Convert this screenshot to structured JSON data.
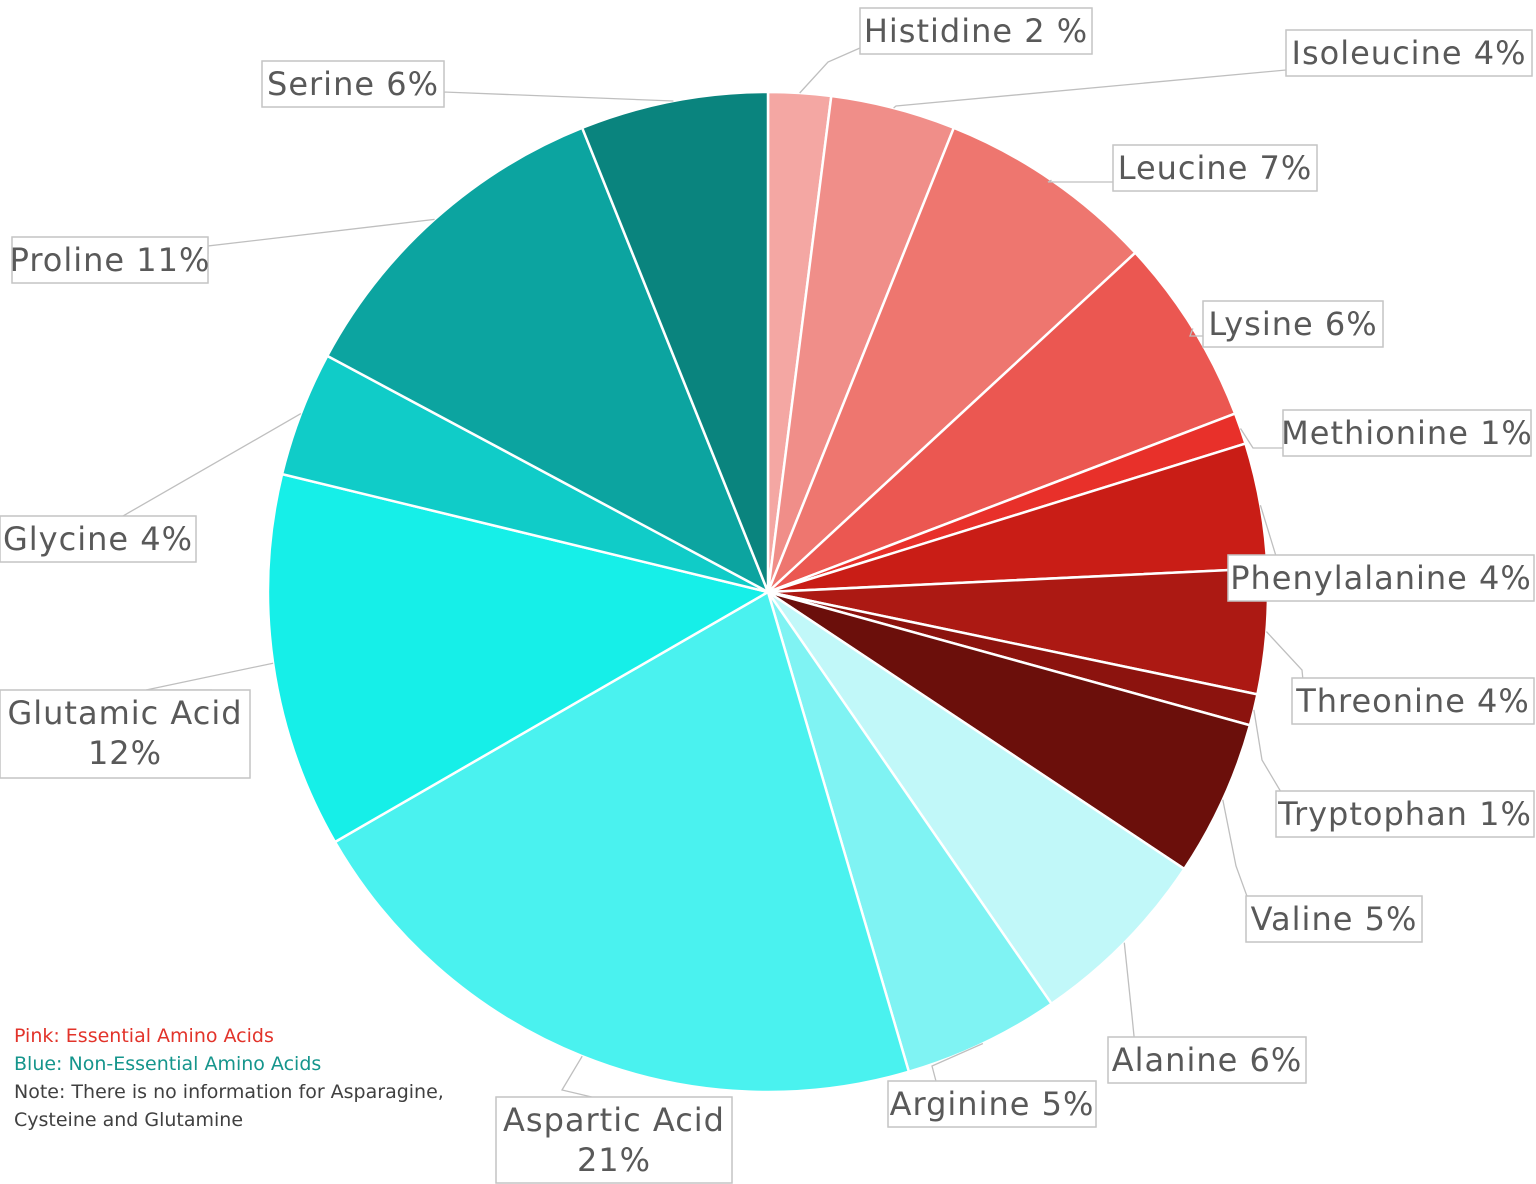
{
  "chart_data": {
    "type": "pie",
    "slices": [
      {
        "label": "Histidine 2 %",
        "value": 2,
        "color": "#f4a7a3"
      },
      {
        "label": "Isoleucine 4%",
        "value": 4,
        "color": "#f08e89"
      },
      {
        "label": "Leucine 7%",
        "value": 7,
        "color": "#ee766f"
      },
      {
        "label": "Lysine 6%",
        "value": 6,
        "color": "#eb5751"
      },
      {
        "label": "Methionine 1%",
        "value": 1,
        "color": "#e8302a"
      },
      {
        "label": "Phenylalanine 4%",
        "value": 4,
        "color": "#c91d16"
      },
      {
        "label": "Threonine 4%",
        "value": 4,
        "color": "#ac1913"
      },
      {
        "label": "Tryptophan 1%",
        "value": 1,
        "color": "#8c130e"
      },
      {
        "label": "Valine 5%",
        "value": 5,
        "color": "#6b0f0b"
      },
      {
        "label": "Alanine 6%",
        "value": 6,
        "color": "#c1f8f9"
      },
      {
        "label": "Arginine 5%",
        "value": 5,
        "color": "#7ff3f3"
      },
      {
        "label": "Aspartic Acid 21%",
        "value": 21,
        "color": "#4af2ef"
      },
      {
        "label": "Glutamic Acid 12%",
        "value": 12,
        "color": "#16efe8"
      },
      {
        "label": "Glycine 4%",
        "value": 4,
        "color": "#10ccc8"
      },
      {
        "label": "Proline 11%",
        "value": 11,
        "color": "#0ca4a0"
      },
      {
        "label": "Serine 6%",
        "value": 6,
        "color": "#0a847e"
      }
    ],
    "labels": [
      {
        "lines": [
          "Histidine 2 %"
        ]
      },
      {
        "lines": [
          "Isoleucine 4%"
        ]
      },
      {
        "lines": [
          "Leucine 7%"
        ]
      },
      {
        "lines": [
          "Lysine 6%"
        ]
      },
      {
        "lines": [
          "Methionine 1%"
        ]
      },
      {
        "lines": [
          "Phenylalanine 4%"
        ]
      },
      {
        "lines": [
          "Threonine 4%"
        ]
      },
      {
        "lines": [
          "Tryptophan 1%"
        ]
      },
      {
        "lines": [
          "Valine 5%"
        ]
      },
      {
        "lines": [
          "Alanine 6%"
        ]
      },
      {
        "lines": [
          "Arginine 5%"
        ]
      },
      {
        "lines": [
          "Aspartic Acid",
          "21%"
        ]
      },
      {
        "lines": [
          "Glutamic Acid",
          "12%"
        ]
      },
      {
        "lines": [
          "Glycine 4%"
        ]
      },
      {
        "lines": [
          "Proline 11%"
        ]
      },
      {
        "lines": [
          "Serine 6%"
        ]
      }
    ]
  },
  "notes": {
    "essential": "Pink: Essential Amino Acids",
    "non_essential": "Blue: Non-Essential Amino Acids",
    "note": "Note: There is no information for Asparagine, Cysteine and Glutamine"
  }
}
